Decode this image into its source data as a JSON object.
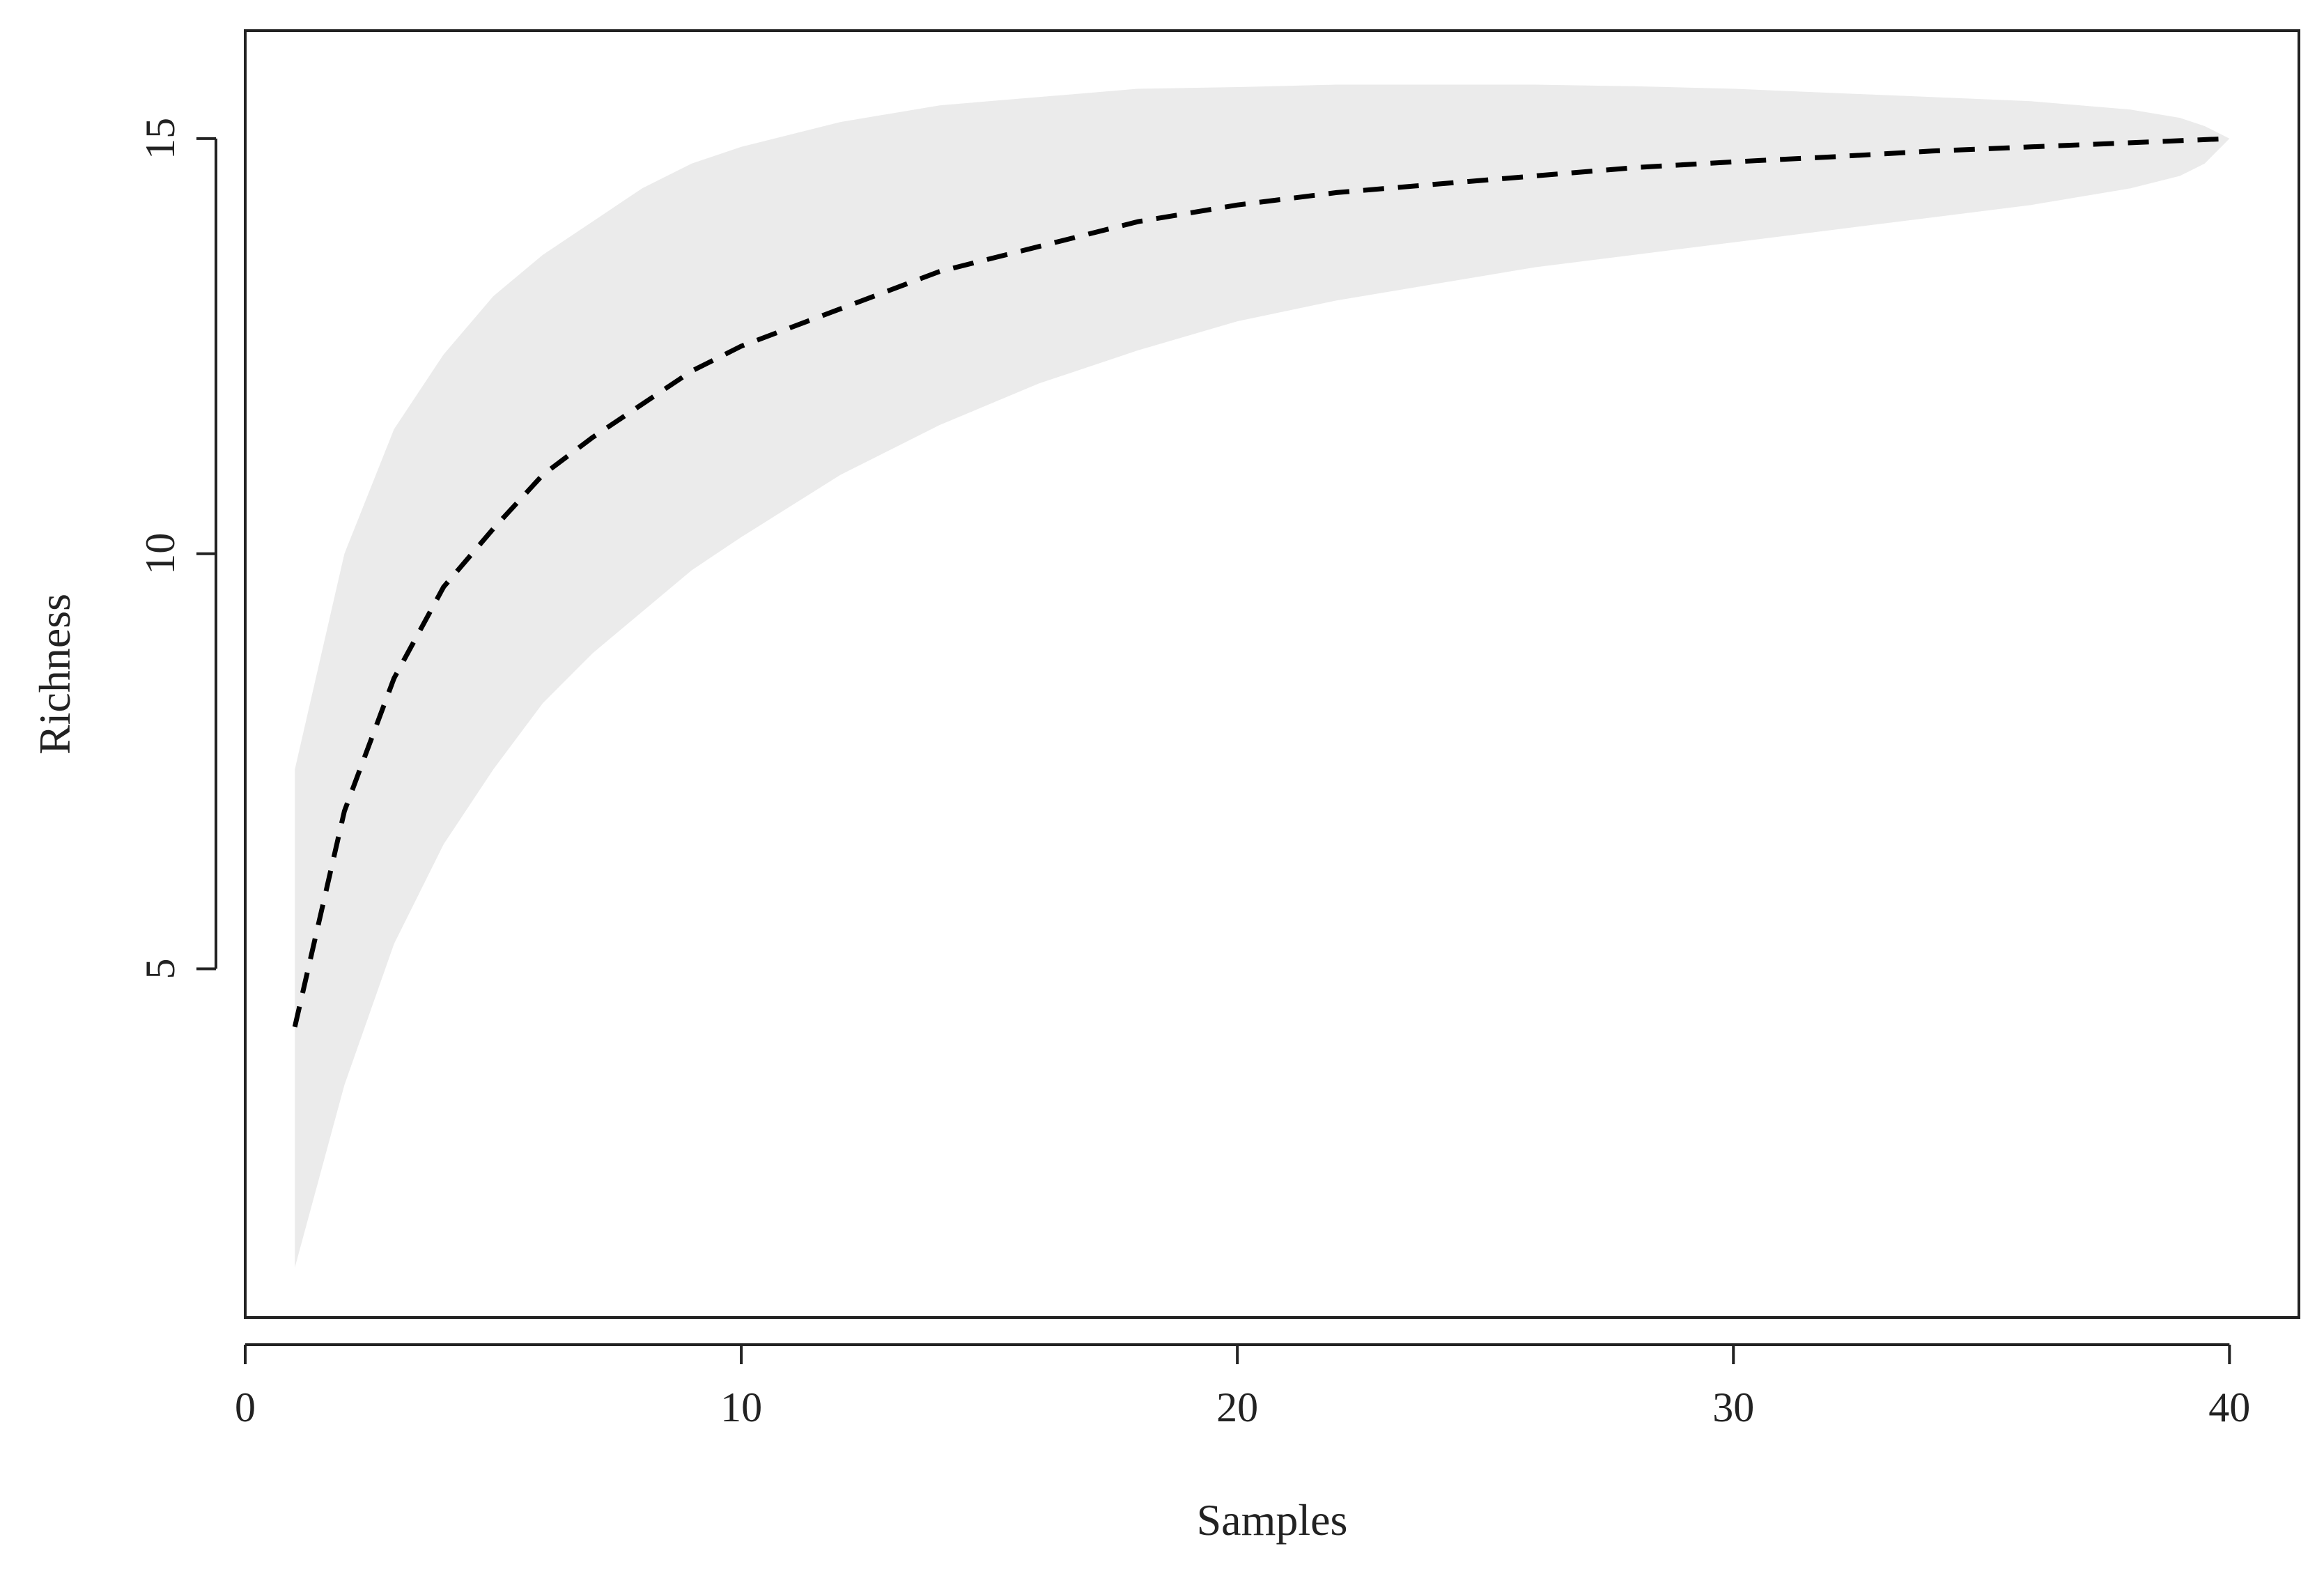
{
  "chart_data": {
    "type": "area",
    "title": "",
    "xlabel": "Samples",
    "ylabel": "Richness",
    "xlim": [
      0,
      41.4
    ],
    "ylim": [
      0.8,
      16.3
    ],
    "x_ticks": [
      0,
      10,
      20,
      30,
      40
    ],
    "x_tick_labels": [
      "0",
      "10",
      "20",
      "30",
      "40"
    ],
    "y_ticks": [
      5,
      10,
      15
    ],
    "y_tick_labels": [
      "5",
      "10",
      "15"
    ],
    "grid": false,
    "legend": "none",
    "series": [
      {
        "style": "dashed-line",
        "color": "#000000",
        "x": [
          1,
          2,
          3,
          4,
          5,
          6,
          7,
          8,
          9,
          10,
          12,
          14,
          16,
          18,
          20,
          22,
          24,
          26,
          28,
          30,
          32,
          34,
          36,
          38,
          40
        ],
        "y": [
          4.3,
          6.9,
          8.5,
          9.6,
          10.3,
          10.95,
          11.4,
          11.8,
          12.2,
          12.5,
          12.95,
          13.4,
          13.7,
          14.0,
          14.2,
          14.35,
          14.45,
          14.55,
          14.65,
          14.72,
          14.78,
          14.85,
          14.9,
          14.95,
          15.0
        ]
      },
      {
        "style": "shaded-band",
        "color": "#ebebeb",
        "x": [
          1,
          2,
          3,
          4,
          5,
          6,
          7,
          8,
          9,
          10,
          12,
          14,
          16,
          18,
          20,
          22,
          24,
          26,
          28,
          30,
          32,
          34,
          36,
          38,
          39,
          39.5,
          40
        ],
        "upper": [
          7.4,
          10.0,
          11.5,
          12.4,
          13.1,
          13.6,
          14.0,
          14.4,
          14.7,
          14.9,
          15.2,
          15.4,
          15.5,
          15.6,
          15.62,
          15.65,
          15.65,
          15.65,
          15.63,
          15.6,
          15.55,
          15.5,
          15.45,
          15.35,
          15.25,
          15.15,
          15.0
        ],
        "lower": [
          1.4,
          3.6,
          5.3,
          6.5,
          7.4,
          8.2,
          8.8,
          9.3,
          9.8,
          10.2,
          10.95,
          11.55,
          12.05,
          12.45,
          12.8,
          13.05,
          13.25,
          13.45,
          13.6,
          13.75,
          13.9,
          14.05,
          14.2,
          14.4,
          14.55,
          14.7,
          15.0
        ]
      }
    ]
  }
}
